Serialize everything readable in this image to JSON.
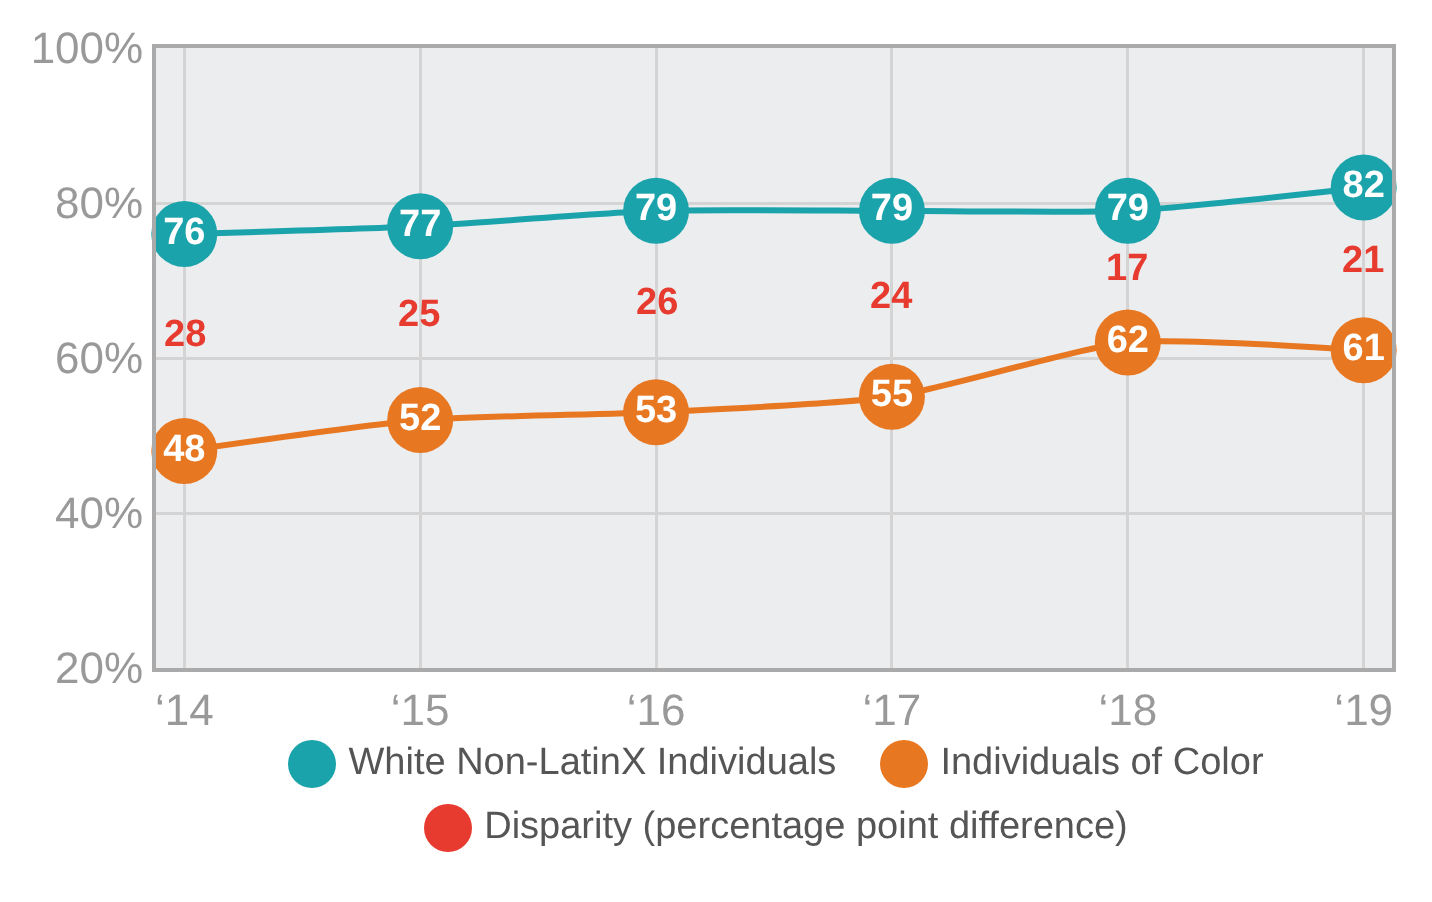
{
  "chart_data": {
    "type": "line",
    "categories": [
      "‘14",
      "‘15",
      "‘16",
      "‘17",
      "‘18",
      "‘19"
    ],
    "series": [
      {
        "name": "White Non-LatinX Individuals",
        "color": "#1ba3ab",
        "values": [
          76,
          77,
          79,
          79,
          79,
          82
        ]
      },
      {
        "name": "Individuals of Color",
        "color": "#e87722",
        "values": [
          48,
          52,
          53,
          55,
          62,
          61
        ]
      },
      {
        "name": "Disparity (percentage point difference)",
        "color": "#e63b2e",
        "values": [
          null,
          null,
          null,
          null,
          null,
          null
        ]
      }
    ],
    "annotations": [
      "28",
      "25",
      "26",
      "24",
      "17",
      "21"
    ],
    "ylim": [
      20,
      100
    ],
    "yticks": [
      {
        "value": 20,
        "label": "20%"
      },
      {
        "value": 40,
        "label": "40%"
      },
      {
        "value": 60,
        "label": "60%"
      },
      {
        "value": 80,
        "label": "80%"
      },
      {
        "value": 100,
        "label": "100%"
      }
    ],
    "grid": true,
    "marker": "circle",
    "data_labels": true,
    "legend": "bottom"
  }
}
